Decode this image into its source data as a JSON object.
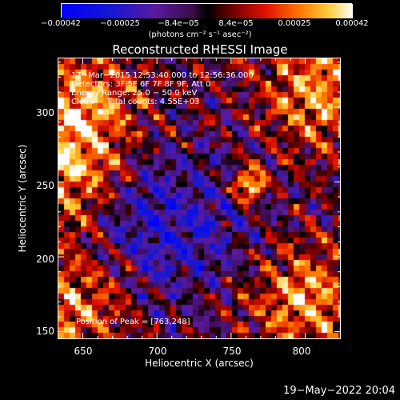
{
  "colorbar": {
    "ticks": [
      "−0.00042",
      "−0.00025",
      "−8.4e−05",
      "8.4e−05",
      "0.00025",
      "0.00042"
    ],
    "unit": "(photons cm⁻² s⁻¹ asec⁻²)",
    "range": [
      -0.00042,
      0.00042
    ]
  },
  "chart_data": {
    "type": "heatmap",
    "title": "Reconstructed RHESSI Image",
    "xlabel": "Heliocentric X (arcsec)",
    "ylabel": "Heliocentric Y (arcsec)",
    "xlim": [
      633,
      824
    ],
    "ylim": [
      145,
      333
    ],
    "xticks": [
      "650",
      "700",
      "750",
      "800"
    ],
    "yticks": [
      "150",
      "200",
      "250",
      "300"
    ],
    "annotations": [
      "17−Mar−2015 12:53:40.000 to 12:56:36.000",
      "Detectors: 3F 5F 6F 7F 8F 9F, Att 0",
      "Energy Range: 25.0 − 50.0 keV",
      "Clean     Total counts: 4.55E+03"
    ],
    "peak_label": "Position of Peak = [763,248]",
    "peak": [
      763,
      248
    ]
  },
  "footer": {
    "timestamp": "19−May−2022 20:04"
  }
}
